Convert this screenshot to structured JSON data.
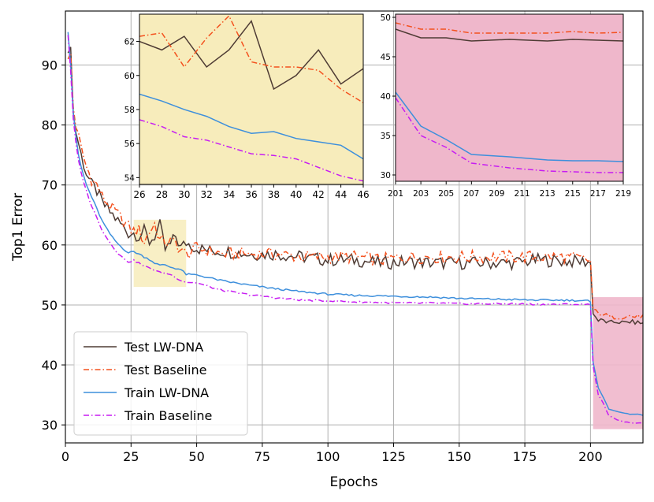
{
  "chart_data": {
    "type": "line",
    "title": "",
    "xlabel": "Epochs",
    "ylabel": "Top1 Error",
    "xlim": [
      0,
      220
    ],
    "ylim": [
      27,
      99
    ],
    "xticks": [
      0,
      25,
      50,
      75,
      100,
      125,
      150,
      175,
      200
    ],
    "yticks": [
      30,
      40,
      50,
      60,
      70,
      80,
      90
    ],
    "grid": true,
    "legend_position": "lower-left",
    "series": [
      {
        "name": "Test LW-DNA",
        "color": "#4e3b34",
        "dash": "solid",
        "x": [
          1,
          2,
          3,
          4,
          5,
          6,
          8,
          10,
          12,
          14,
          16,
          18,
          20,
          22,
          24,
          26,
          28,
          30,
          32,
          34,
          36,
          38,
          40,
          42,
          44,
          46,
          50,
          55,
          60,
          70,
          80,
          90,
          100,
          110,
          120,
          130,
          140,
          150,
          160,
          170,
          180,
          190,
          199,
          200,
          201,
          203,
          205,
          207,
          210,
          213,
          215,
          217,
          219,
          220
        ],
        "y": [
          92,
          93,
          82,
          79,
          77,
          75,
          72,
          70,
          69,
          67,
          66,
          65,
          64,
          63,
          62,
          62.0,
          61.5,
          62.3,
          60.5,
          61.5,
          63.2,
          59.2,
          60.0,
          61.5,
          59.5,
          60.4,
          59.5,
          59.0,
          59.0,
          58.5,
          58.5,
          58.0,
          57.5,
          57.5,
          57.0,
          57.2,
          57.0,
          57.0,
          57.0,
          57.0,
          57.5,
          57.3,
          57.2,
          57.0,
          48.5,
          47.4,
          47.4,
          47.0,
          47.2,
          47.0,
          47.2,
          47.1,
          47.0,
          46.9
        ]
      },
      {
        "name": "Test Baseline",
        "color": "#f4511e",
        "dash": "dashdot",
        "x": [
          1,
          2,
          3,
          4,
          5,
          6,
          8,
          10,
          12,
          14,
          16,
          18,
          20,
          22,
          24,
          26,
          28,
          30,
          32,
          34,
          36,
          38,
          40,
          42,
          44,
          46,
          50,
          55,
          60,
          70,
          80,
          90,
          100,
          110,
          120,
          130,
          140,
          150,
          160,
          170,
          180,
          190,
          199,
          200,
          201,
          203,
          205,
          207,
          210,
          213,
          215,
          217,
          219,
          220
        ],
        "y": [
          91,
          92,
          83,
          80,
          78,
          76,
          73,
          71,
          70,
          68,
          67,
          66,
          65,
          64,
          63,
          62.3,
          62.5,
          60.5,
          62.2,
          63.5,
          60.8,
          60.5,
          60.5,
          60.3,
          59.2,
          58.4,
          59.5,
          59.0,
          58.5,
          58.5,
          58.5,
          58.0,
          58.0,
          58.0,
          57.5,
          58.0,
          58.0,
          58.0,
          58.0,
          58.0,
          58.0,
          58.0,
          57.5,
          57.5,
          49.3,
          48.5,
          48.5,
          48.0,
          48.0,
          48.0,
          48.2,
          48.0,
          48.1,
          48.1
        ]
      },
      {
        "name": "Train LW-DNA",
        "color": "#3d8fdc",
        "dash": "solid",
        "x": [
          1,
          2,
          3,
          4,
          5,
          6,
          8,
          10,
          12,
          14,
          16,
          18,
          20,
          22,
          24,
          26,
          28,
          30,
          32,
          34,
          36,
          38,
          40,
          42,
          44,
          46,
          50,
          55,
          60,
          70,
          80,
          90,
          100,
          110,
          120,
          130,
          140,
          150,
          160,
          170,
          180,
          190,
          199,
          200,
          201,
          203,
          205,
          207,
          210,
          213,
          215,
          217,
          219,
          220
        ],
        "y": [
          95.5,
          90,
          82,
          78,
          75,
          73,
          70,
          68,
          66,
          64,
          62.5,
          61.2,
          60.2,
          59.4,
          58.7,
          58.9,
          58.5,
          58.0,
          57.6,
          57.0,
          56.6,
          56.7,
          56.3,
          56.1,
          55.9,
          55.1,
          55.0,
          54.5,
          54.0,
          53.3,
          52.7,
          52.2,
          51.8,
          51.6,
          51.5,
          51.4,
          51.3,
          51.1,
          51.0,
          50.9,
          50.8,
          50.8,
          50.7,
          50.5,
          40.5,
          36.2,
          34.5,
          32.6,
          32.3,
          31.9,
          31.8,
          31.8,
          31.7,
          31.6
        ]
      },
      {
        "name": "Train Baseline",
        "color": "#c71cf2",
        "dash": "dashdot",
        "x": [
          1,
          2,
          3,
          4,
          5,
          6,
          8,
          10,
          12,
          14,
          16,
          18,
          20,
          22,
          24,
          26,
          28,
          30,
          32,
          34,
          36,
          38,
          40,
          42,
          44,
          46,
          50,
          55,
          60,
          70,
          80,
          90,
          100,
          110,
          120,
          130,
          140,
          150,
          160,
          170,
          180,
          190,
          199,
          200,
          201,
          203,
          205,
          207,
          210,
          213,
          215,
          217,
          219,
          220
        ],
        "y": [
          95,
          89,
          81,
          77,
          74,
          72,
          69,
          66.5,
          64.5,
          62.5,
          61,
          59.8,
          58.6,
          57.8,
          57.2,
          57.4,
          57.0,
          56.4,
          56.2,
          55.8,
          55.4,
          55.3,
          55.1,
          54.6,
          54.1,
          53.8,
          53.7,
          53.0,
          52.4,
          51.7,
          51.2,
          50.8,
          50.7,
          50.5,
          50.4,
          50.3,
          50.3,
          50.2,
          50.2,
          50.2,
          50.1,
          50.1,
          50.1,
          50.0,
          39.8,
          35.0,
          33.5,
          31.5,
          30.9,
          30.5,
          30.4,
          30.3,
          30.3,
          30.2
        ]
      }
    ],
    "insets": [
      {
        "xlim": [
          26,
          46
        ],
        "ylim": [
          53.6,
          63.6
        ],
        "xticks": [
          26,
          28,
          30,
          32,
          34,
          36,
          38,
          40,
          42,
          44,
          46
        ],
        "yticks": [
          54,
          56,
          58,
          60,
          62
        ],
        "background": "#f7ecbb"
      },
      {
        "xlim": [
          201,
          219
        ],
        "ylim": [
          29.2,
          50.4
        ],
        "xticks": [
          201,
          203,
          205,
          207,
          209,
          211,
          213,
          215,
          217,
          219
        ],
        "yticks": [
          30,
          35,
          40,
          45,
          50
        ],
        "background": "#efb7cb"
      }
    ]
  }
}
